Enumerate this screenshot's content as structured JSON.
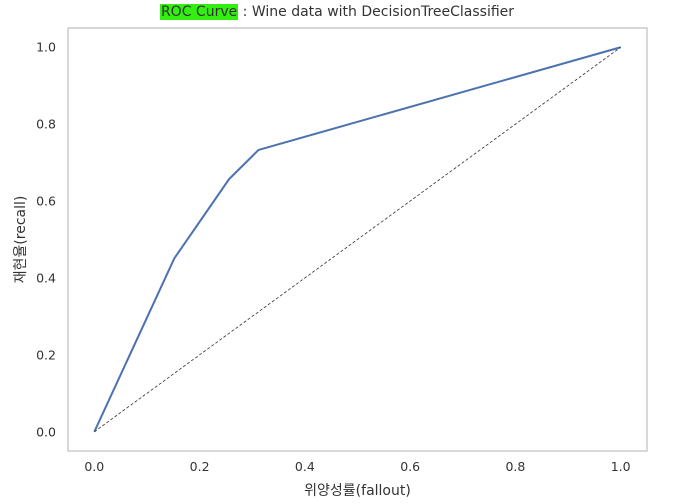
{
  "chart_data": {
    "type": "line",
    "title_highlight": "ROC Curve",
    "title_rest": " : Wine data with DecisionTreeClassifier",
    "xlabel": "위양성률(fallout)",
    "ylabel": "재현율(recall)",
    "xlim": [
      -0.05,
      1.05
    ],
    "ylim": [
      -0.05,
      1.05
    ],
    "xticks": [
      0.0,
      0.2,
      0.4,
      0.6,
      0.8,
      1.0
    ],
    "yticks": [
      0.0,
      0.2,
      0.4,
      0.6,
      0.8,
      1.0
    ],
    "xtick_labels": [
      "0.0",
      "0.2",
      "0.4",
      "0.6",
      "0.8",
      "1.0"
    ],
    "ytick_labels": [
      "0.0",
      "0.2",
      "0.4",
      "0.6",
      "0.8",
      "1.0"
    ],
    "grid": false,
    "series": [
      {
        "x": [
          0.0,
          0.152,
          0.256,
          0.312,
          1.0
        ],
        "y": [
          0.0,
          0.451,
          0.657,
          0.733,
          1.0
        ],
        "color": "#4c72b0",
        "style": "solid"
      },
      {
        "x": [
          0.0,
          1.0
        ],
        "y": [
          0.0,
          1.0
        ],
        "color": "#333333",
        "style": "dashed"
      }
    ]
  }
}
